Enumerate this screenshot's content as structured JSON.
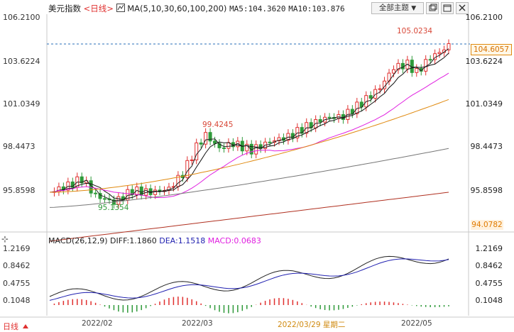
{
  "header": {
    "index_name": "美元指数",
    "period_tag": "<日线>",
    "ma_label": "MA(5,10,30,60,100,200)",
    "ma5": "MA5:104.3620",
    "ma10": "MA10:103.876",
    "theme_button": "全部主题",
    "theme_caret": "▼"
  },
  "yaxis_main": [
    "106.2100",
    "103.6224",
    "101.0349",
    "98.4473",
    "95.8598"
  ],
  "yaxis_macd": [
    "1.2169",
    "0.8462",
    "0.4755",
    "0.1048"
  ],
  "xaxis": [
    "2022/02",
    "2022/03",
    "2022/03/29 星期二",
    "2022/05"
  ],
  "annotations": {
    "high": "105.0234",
    "mid_high": "99.4245",
    "low": "95.1354",
    "current_price": "104.6057",
    "axis_low": "94.0782"
  },
  "macd_header": {
    "label": "MACD(26,12,9)",
    "diff": "DIFF:1.1860",
    "dea": "DEA:1.1518",
    "macd": "MACD:0.0683"
  },
  "footer": {
    "period": "日线"
  },
  "colors": {
    "up": "#e0302f",
    "down": "#2f9a3a",
    "ma5": "#222222",
    "ma10": "#111111",
    "ma30": "#e020e0",
    "ma60": "#e08a10",
    "ma100": "#777777",
    "ma200": "#b03020",
    "macd_dea": "#2020b0"
  }
}
